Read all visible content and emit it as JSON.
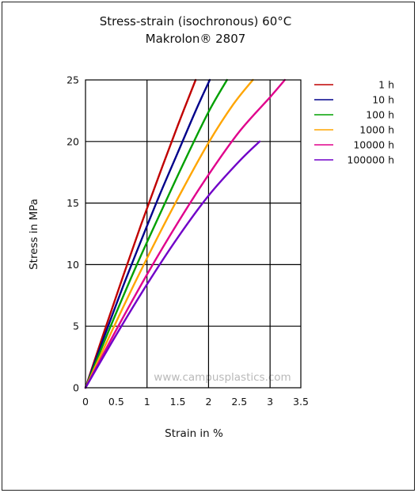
{
  "chart_data": {
    "type": "line",
    "title": "Stress-strain (isochronous) 60°C",
    "subtitle": "Makrolon® 2807",
    "xlabel": "Strain in %",
    "ylabel": "Stress in MPa",
    "xlim": [
      0,
      3.5
    ],
    "ylim": [
      0,
      25
    ],
    "xticks": [
      "0",
      "0.5",
      "1",
      "1.5",
      "2",
      "2.5",
      "3",
      "3.5"
    ],
    "yticks": [
      "0",
      "5",
      "10",
      "15",
      "20",
      "25"
    ],
    "grid": true,
    "legend_position": "right",
    "watermark": "www.campusplastics.com",
    "series": [
      {
        "name": "1 h",
        "color": "#c00000",
        "x": [
          0,
          0.3,
          0.6,
          0.9,
          1.2,
          1.5,
          1.79
        ],
        "y": [
          0,
          4.5,
          8.9,
          13.2,
          17.3,
          21.3,
          25
        ]
      },
      {
        "name": "10 h",
        "color": "#00008b",
        "x": [
          0,
          0.3,
          0.6,
          0.9,
          1.2,
          1.5,
          1.8,
          2.02
        ],
        "y": [
          0,
          4.1,
          8.1,
          11.9,
          15.6,
          19.1,
          22.6,
          25
        ]
      },
      {
        "name": "100 h",
        "color": "#00a000",
        "x": [
          0,
          0.4,
          0.8,
          1.2,
          1.6,
          2.0,
          2.3
        ],
        "y": [
          0,
          4.9,
          9.6,
          14.0,
          18.3,
          22.4,
          25
        ]
      },
      {
        "name": "1000 h",
        "color": "#ffa500",
        "x": [
          0,
          0.4,
          0.8,
          1.2,
          1.6,
          2.0,
          2.4,
          2.72
        ],
        "y": [
          0,
          4.3,
          8.5,
          12.5,
          16.3,
          19.9,
          23.0,
          25
        ]
      },
      {
        "name": "10000 h",
        "color": "#e0008c",
        "x": [
          0,
          0.5,
          1.0,
          1.5,
          2.0,
          2.5,
          3.0,
          3.24
        ],
        "y": [
          0,
          4.7,
          9.2,
          13.4,
          17.3,
          20.8,
          23.6,
          25
        ]
      },
      {
        "name": "100000 h",
        "color": "#7000c8",
        "x": [
          0,
          0.5,
          1.0,
          1.5,
          2.0,
          2.5,
          2.83
        ],
        "y": [
          0,
          4.3,
          8.4,
          12.2,
          15.6,
          18.4,
          20
        ]
      }
    ]
  }
}
